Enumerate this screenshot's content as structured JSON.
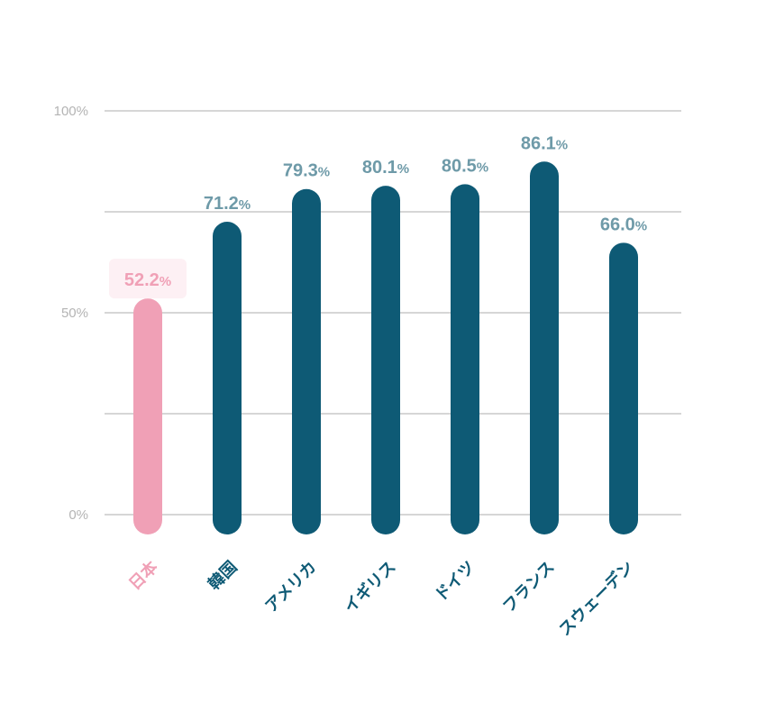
{
  "chart_data": {
    "type": "bar",
    "categories": [
      "日本",
      "韓国",
      "アメリカ",
      "イギリス",
      "ドイツ",
      "フランス",
      "スウェーデン"
    ],
    "values": [
      52.2,
      71.2,
      79.3,
      80.1,
      80.5,
      86.1,
      66.0
    ],
    "value_labels": [
      "52.2",
      "71.2",
      "79.3",
      "80.1",
      "80.5",
      "86.1",
      "66.0"
    ],
    "unit": "%",
    "y_ticks": [
      "100%",
      "50%",
      "0%"
    ],
    "ylim": [
      0,
      100
    ],
    "grid": true,
    "highlight_index": 0,
    "colors": {
      "highlight_bar": "#f0a0b6",
      "highlight_label": "#f0a0b6",
      "highlight_badge": "#fdf0f4",
      "bar": "#0e5a75",
      "value_label": "#6e9aa8",
      "category_label": "#0e5a75",
      "grid": "#c8c8c8",
      "y_tick": "#b4b4b4"
    }
  }
}
